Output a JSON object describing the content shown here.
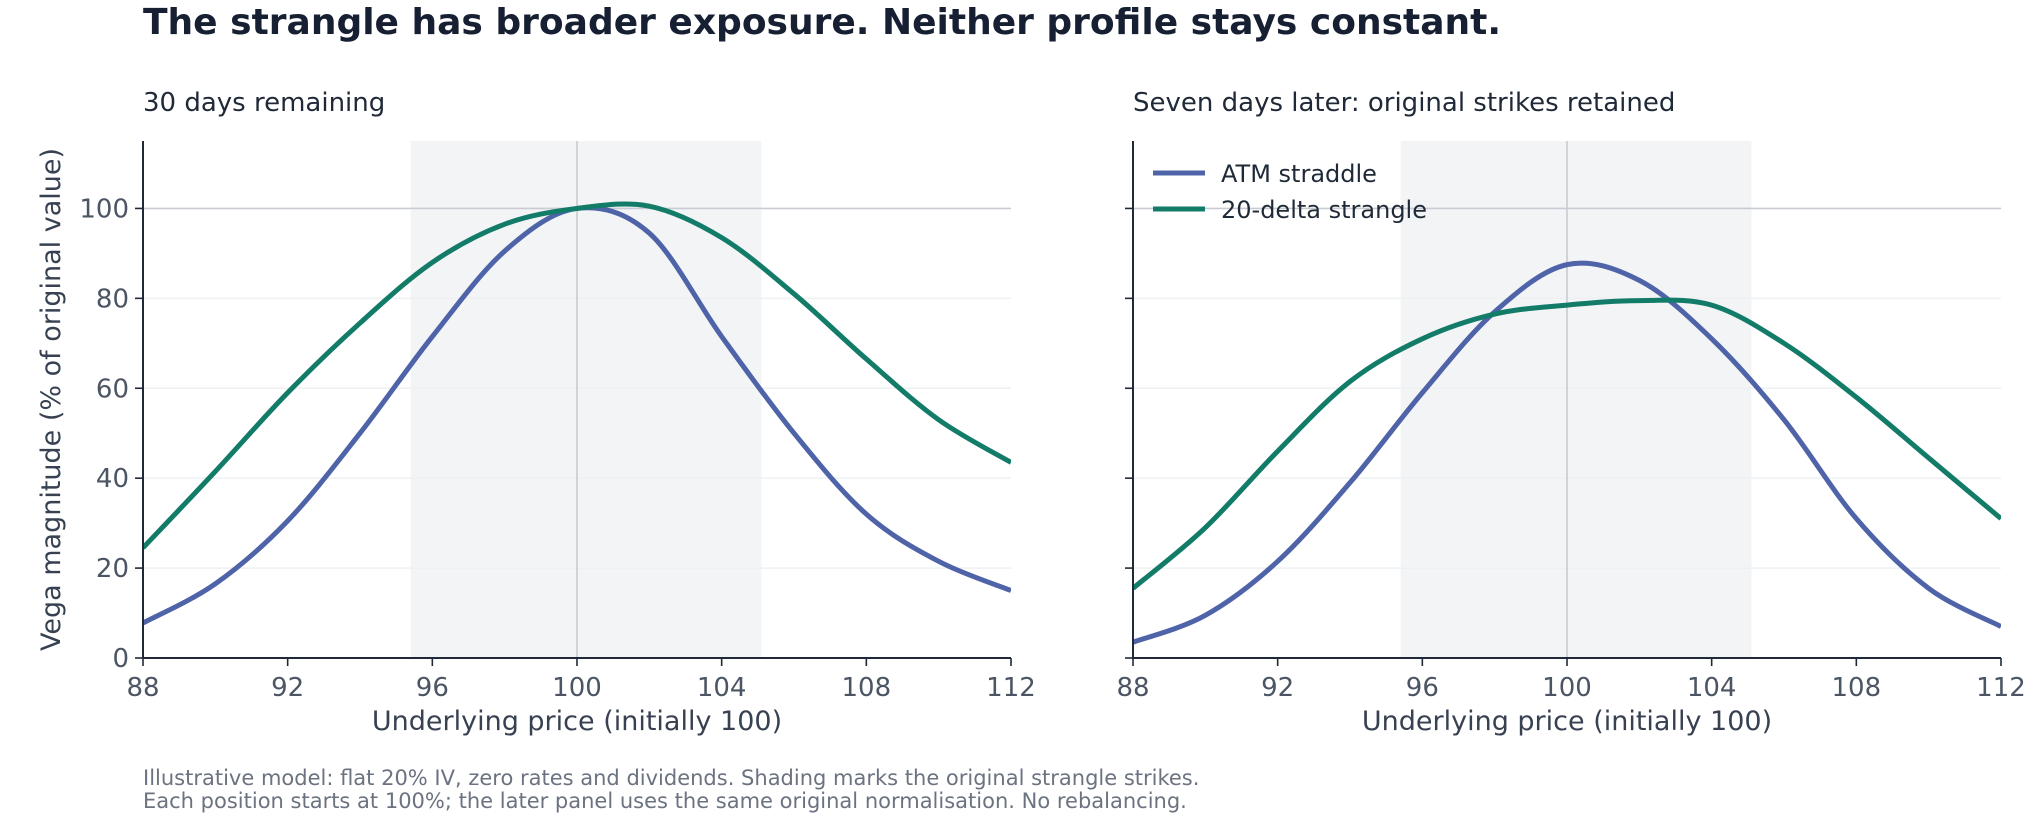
{
  "title": "The strangle has broader exposure. Neither profile stays constant.",
  "footnote_lines": [
    "Illustrative model: flat 20% IV, zero rates and dividends. Shading marks the original strangle strikes.",
    "Each position starts at 100%; the later panel uses the same original normalisation. No rebalancing."
  ],
  "colors": {
    "straddle": "#4f64a8",
    "strangle": "#127c69",
    "shading": "#f3f4f6",
    "reference": "#c8ccd2",
    "grid": "#eef0f2",
    "axis": "#1f2937"
  },
  "legend": [
    {
      "label": "ATM straddle",
      "series": "straddle"
    },
    {
      "label": "20-delta strangle",
      "series": "strangle"
    }
  ],
  "chart_data": [
    {
      "type": "line",
      "title": "30 days remaining",
      "xlabel": "Underlying price (initially 100)",
      "ylabel": "Vega magnitude (% of original value)",
      "xlim": [
        88,
        112
      ],
      "ylim": [
        0,
        115
      ],
      "xticks": [
        88,
        92,
        96,
        100,
        104,
        108,
        112
      ],
      "yticks": [
        0,
        20,
        40,
        60,
        80,
        100
      ],
      "shaded_x_range": [
        95.4,
        105.1
      ],
      "reference_x": 100,
      "reference_y": 100,
      "grid": "horizontal",
      "legend": "none",
      "series": [
        {
          "key": "straddle",
          "name": "ATM straddle",
          "x": [
            88,
            90,
            92,
            94,
            96,
            98,
            100,
            102,
            104,
            106,
            108,
            110,
            112
          ],
          "y": [
            7.8,
            16.5,
            30.5,
            50,
            71.5,
            90.5,
            100,
            94.5,
            71.5,
            50,
            32,
            21.5,
            15
          ]
        },
        {
          "key": "strangle",
          "name": "20-delta strangle",
          "x": [
            88,
            90,
            92,
            94,
            96,
            98,
            100,
            102,
            104,
            106,
            108,
            110,
            112
          ],
          "y": [
            24.5,
            41.5,
            59,
            74.5,
            88,
            96.5,
            100,
            100.5,
            93.5,
            81,
            66.5,
            53,
            43.5
          ]
        }
      ]
    },
    {
      "type": "line",
      "title": "Seven days later: original strikes retained",
      "xlabel": "Underlying price (initially 100)",
      "ylabel": "",
      "xlim": [
        88,
        112
      ],
      "ylim": [
        0,
        115
      ],
      "xticks": [
        88,
        92,
        96,
        100,
        104,
        108,
        112
      ],
      "yticks": [
        0,
        20,
        40,
        60,
        80,
        100
      ],
      "shaded_x_range": [
        95.4,
        105.1
      ],
      "reference_x": 100,
      "reference_y": 100,
      "grid": "horizontal",
      "legend": "top-left",
      "series": [
        {
          "key": "straddle",
          "name": "ATM straddle",
          "x": [
            88,
            90,
            92,
            94,
            96,
            98,
            100,
            102,
            104,
            106,
            108,
            110,
            112
          ],
          "y": [
            3.5,
            9.5,
            21.5,
            39,
            59,
            77,
            87.5,
            84,
            71,
            53,
            31,
            15.5,
            7
          ]
        },
        {
          "key": "strangle",
          "name": "20-delta strangle",
          "x": [
            88,
            90,
            92,
            94,
            96,
            98,
            100,
            102,
            104,
            106,
            108,
            110,
            112
          ],
          "y": [
            15.5,
            29,
            46,
            61.5,
            71,
            76.5,
            78.5,
            79.5,
            78.5,
            70,
            58,
            44.5,
            31
          ]
        }
      ]
    }
  ]
}
